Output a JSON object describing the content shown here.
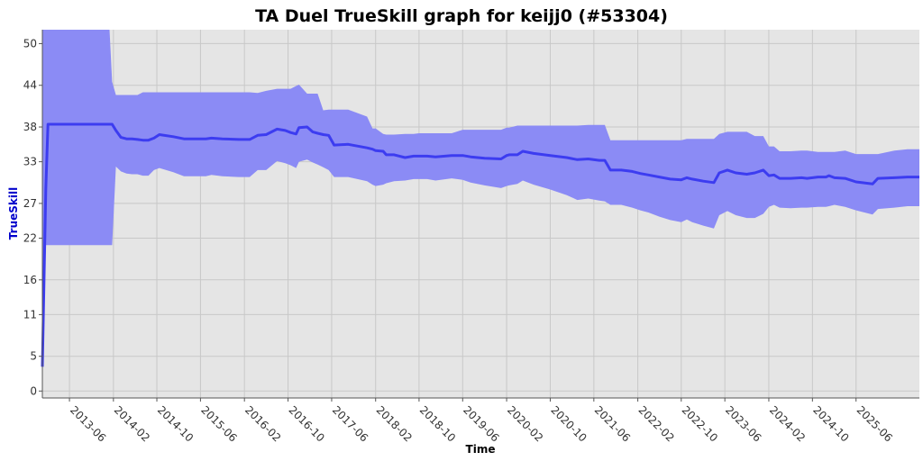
{
  "chart_data": {
    "type": "area",
    "title": "TA Duel TrueSkill graph for keijj0 (#53304)",
    "xlabel": "Time",
    "ylabel": "TrueSkill",
    "ylim": [
      -1,
      52
    ],
    "xlim": [
      "2013-01-01",
      "2026-05-20"
    ],
    "y_ticks": [
      0,
      5,
      11,
      16,
      22,
      27,
      33,
      38,
      44,
      50
    ],
    "x_ticks": [
      "2013-06",
      "2014-02",
      "2014-10",
      "2015-06",
      "2016-02",
      "2016-10",
      "2017-06",
      "2018-02",
      "2018-10",
      "2019-06",
      "2020-02",
      "2020-10",
      "2021-06",
      "2022-02",
      "2022-10",
      "2023-06",
      "2024-02",
      "2024-10",
      "2025-06"
    ],
    "grid": true,
    "colors": {
      "band": "#8b8bf5",
      "line": "#3c3cf0",
      "plot_bg": "#e5e5e5",
      "grid": "#c8c8c8",
      "ylabel": "#0000cc"
    },
    "series": [
      {
        "x": [
          "2013-01-01",
          "2013-01-20",
          "2013-02-01",
          "2014-01-10",
          "2014-01-25",
          "2014-02-15",
          "2014-03-15",
          "2014-04-15",
          "2014-05-15",
          "2014-06-15",
          "2014-07-15",
          "2014-08-15",
          "2014-09-15",
          "2014-10-15",
          "2015-01-01",
          "2015-03-01",
          "2015-05-01",
          "2015-07-01",
          "2015-08-01",
          "2015-10-01",
          "2016-01-01",
          "2016-03-01",
          "2016-04-15",
          "2016-06-01",
          "2016-08-01",
          "2016-09-15",
          "2016-10-15",
          "2016-11-15",
          "2016-12-01",
          "2017-01-15",
          "2017-02-15",
          "2017-03-15",
          "2017-04-15",
          "2017-05-15",
          "2017-06-15",
          "2017-09-01",
          "2017-12-15",
          "2018-01-15",
          "2018-02-01",
          "2018-03-15",
          "2018-04-01",
          "2018-05-15",
          "2018-07-15",
          "2018-09-01",
          "2018-10-01",
          "2018-11-15",
          "2019-01-01",
          "2019-04-01",
          "2019-06-01",
          "2019-07-15",
          "2019-10-01",
          "2020-01-01",
          "2020-02-01",
          "2020-02-15",
          "2020-04-01",
          "2020-05-01",
          "2020-07-01",
          "2020-10-01",
          "2021-01-01",
          "2021-03-01",
          "2021-05-01",
          "2021-07-01",
          "2021-08-01",
          "2021-09-01",
          "2021-11-01",
          "2022-01-01",
          "2022-02-15",
          "2022-04-01",
          "2022-06-01",
          "2022-08-01",
          "2022-10-01",
          "2022-11-01",
          "2022-12-01",
          "2023-02-01",
          "2023-04-01",
          "2023-05-01",
          "2023-06-15",
          "2023-08-01",
          "2023-10-01",
          "2023-11-15",
          "2024-01-01",
          "2024-02-01",
          "2024-03-01",
          "2024-04-01",
          "2024-06-01",
          "2024-08-01",
          "2024-09-01",
          "2024-11-01",
          "2024-12-15",
          "2025-01-01",
          "2025-02-01",
          "2025-04-01",
          "2025-06-01",
          "2025-09-01",
          "2025-10-01",
          "2026-01-01",
          "2026-03-15",
          "2026-05-20"
        ],
        "y": [
          3.5,
          29.0,
          38.4,
          38.4,
          38.4,
          37.5,
          36.5,
          36.3,
          36.3,
          36.2,
          36.1,
          36.1,
          36.4,
          36.9,
          36.6,
          36.3,
          36.3,
          36.3,
          36.4,
          36.3,
          36.2,
          36.2,
          36.8,
          36.9,
          37.7,
          37.5,
          37.2,
          37.0,
          37.9,
          38.0,
          37.3,
          37.1,
          36.9,
          36.8,
          35.4,
          35.5,
          35.0,
          34.8,
          34.6,
          34.5,
          34.0,
          34.0,
          33.6,
          33.8,
          33.8,
          33.8,
          33.7,
          33.9,
          33.9,
          33.7,
          33.5,
          33.4,
          33.9,
          34.0,
          34.0,
          34.5,
          34.2,
          33.9,
          33.6,
          33.3,
          33.4,
          33.2,
          33.2,
          31.8,
          31.8,
          31.6,
          31.3,
          31.1,
          30.8,
          30.5,
          30.4,
          30.7,
          30.5,
          30.2,
          30.0,
          31.4,
          31.8,
          31.4,
          31.2,
          31.4,
          31.8,
          31.0,
          31.1,
          30.6,
          30.6,
          30.7,
          30.6,
          30.8,
          30.8,
          31.0,
          30.7,
          30.6,
          30.1,
          29.8,
          30.6,
          30.7,
          30.8,
          30.8
        ]
      }
    ],
    "band": {
      "x": [
        "2013-01-01",
        "2013-01-20",
        "2013-02-01",
        "2014-01-10",
        "2014-01-25",
        "2014-02-15",
        "2014-03-15",
        "2014-04-15",
        "2014-05-15",
        "2014-06-15",
        "2014-07-15",
        "2014-08-15",
        "2014-09-15",
        "2014-10-15",
        "2015-01-01",
        "2015-03-01",
        "2015-05-01",
        "2015-07-01",
        "2015-08-01",
        "2015-10-01",
        "2016-01-01",
        "2016-03-01",
        "2016-04-15",
        "2016-06-01",
        "2016-08-01",
        "2016-09-15",
        "2016-10-15",
        "2016-11-15",
        "2016-12-01",
        "2017-01-15",
        "2017-02-15",
        "2017-03-15",
        "2017-04-15",
        "2017-05-15",
        "2017-06-15",
        "2017-09-01",
        "2017-12-15",
        "2018-01-15",
        "2018-02-01",
        "2018-03-15",
        "2018-04-01",
        "2018-05-15",
        "2018-07-15",
        "2018-09-01",
        "2018-10-01",
        "2018-11-15",
        "2019-01-01",
        "2019-04-01",
        "2019-06-01",
        "2019-07-15",
        "2019-10-01",
        "2020-01-01",
        "2020-02-01",
        "2020-02-15",
        "2020-04-01",
        "2020-05-01",
        "2020-07-01",
        "2020-10-01",
        "2021-01-01",
        "2021-03-01",
        "2021-05-01",
        "2021-07-01",
        "2021-08-01",
        "2021-09-01",
        "2021-11-01",
        "2022-01-01",
        "2022-02-15",
        "2022-04-01",
        "2022-06-01",
        "2022-08-01",
        "2022-10-01",
        "2022-11-01",
        "2022-12-01",
        "2023-02-01",
        "2023-04-01",
        "2023-05-01",
        "2023-06-15",
        "2023-08-01",
        "2023-10-01",
        "2023-11-15",
        "2024-01-01",
        "2024-02-01",
        "2024-03-01",
        "2024-04-01",
        "2024-06-01",
        "2024-08-01",
        "2024-09-01",
        "2024-11-01",
        "2024-12-15",
        "2025-01-01",
        "2025-02-01",
        "2025-04-01",
        "2025-06-01",
        "2025-09-01",
        "2025-10-01",
        "2026-01-01",
        "2026-03-15",
        "2026-05-20"
      ],
      "upper": [
        52,
        52,
        52,
        52,
        44.5,
        42.6,
        42.6,
        42.6,
        42.6,
        42.6,
        43.0,
        43.0,
        43.0,
        43.0,
        43.0,
        43.0,
        43.0,
        43.0,
        43.0,
        43.0,
        43.0,
        43.0,
        42.9,
        43.2,
        43.5,
        43.5,
        43.5,
        43.9,
        44.1,
        42.8,
        42.8,
        42.8,
        40.4,
        40.5,
        40.5,
        40.5,
        39.5,
        37.8,
        37.8,
        37.0,
        36.9,
        36.9,
        37.0,
        37.0,
        37.1,
        37.1,
        37.1,
        37.1,
        37.6,
        37.6,
        37.6,
        37.6,
        37.9,
        37.9,
        38.2,
        38.2,
        38.2,
        38.2,
        38.2,
        38.2,
        38.3,
        38.3,
        38.3,
        36.1,
        36.1,
        36.1,
        36.1,
        36.1,
        36.1,
        36.1,
        36.1,
        36.3,
        36.3,
        36.3,
        36.3,
        37.0,
        37.3,
        37.3,
        37.3,
        36.7,
        36.7,
        35.2,
        35.2,
        34.5,
        34.5,
        34.6,
        34.6,
        34.4,
        34.4,
        34.4,
        34.4,
        34.6,
        34.1,
        34.1,
        34.1,
        34.6,
        34.8,
        34.8
      ],
      "lower": [
        3.5,
        21.0,
        21.0,
        21.0,
        21.0,
        32.3,
        31.6,
        31.3,
        31.2,
        31.2,
        31.0,
        31.0,
        31.8,
        32.1,
        31.5,
        30.9,
        30.9,
        30.9,
        31.1,
        30.9,
        30.8,
        30.8,
        31.8,
        31.8,
        33.1,
        32.8,
        32.5,
        32.1,
        33.0,
        33.3,
        32.9,
        32.6,
        32.2,
        31.8,
        30.8,
        30.8,
        30.2,
        29.7,
        29.5,
        29.7,
        29.9,
        30.2,
        30.3,
        30.5,
        30.5,
        30.5,
        30.3,
        30.6,
        30.4,
        30.0,
        29.6,
        29.2,
        29.5,
        29.6,
        29.8,
        30.3,
        29.7,
        29.0,
        28.2,
        27.5,
        27.7,
        27.4,
        27.3,
        26.8,
        26.8,
        26.4,
        26.0,
        25.7,
        25.1,
        24.6,
        24.3,
        24.7,
        24.3,
        23.8,
        23.4,
        25.3,
        25.9,
        25.3,
        24.9,
        24.9,
        25.5,
        26.5,
        26.8,
        26.4,
        26.3,
        26.4,
        26.4,
        26.5,
        26.5,
        26.6,
        26.8,
        26.5,
        26.0,
        25.4,
        26.2,
        26.4,
        26.6,
        26.6
      ]
    }
  }
}
